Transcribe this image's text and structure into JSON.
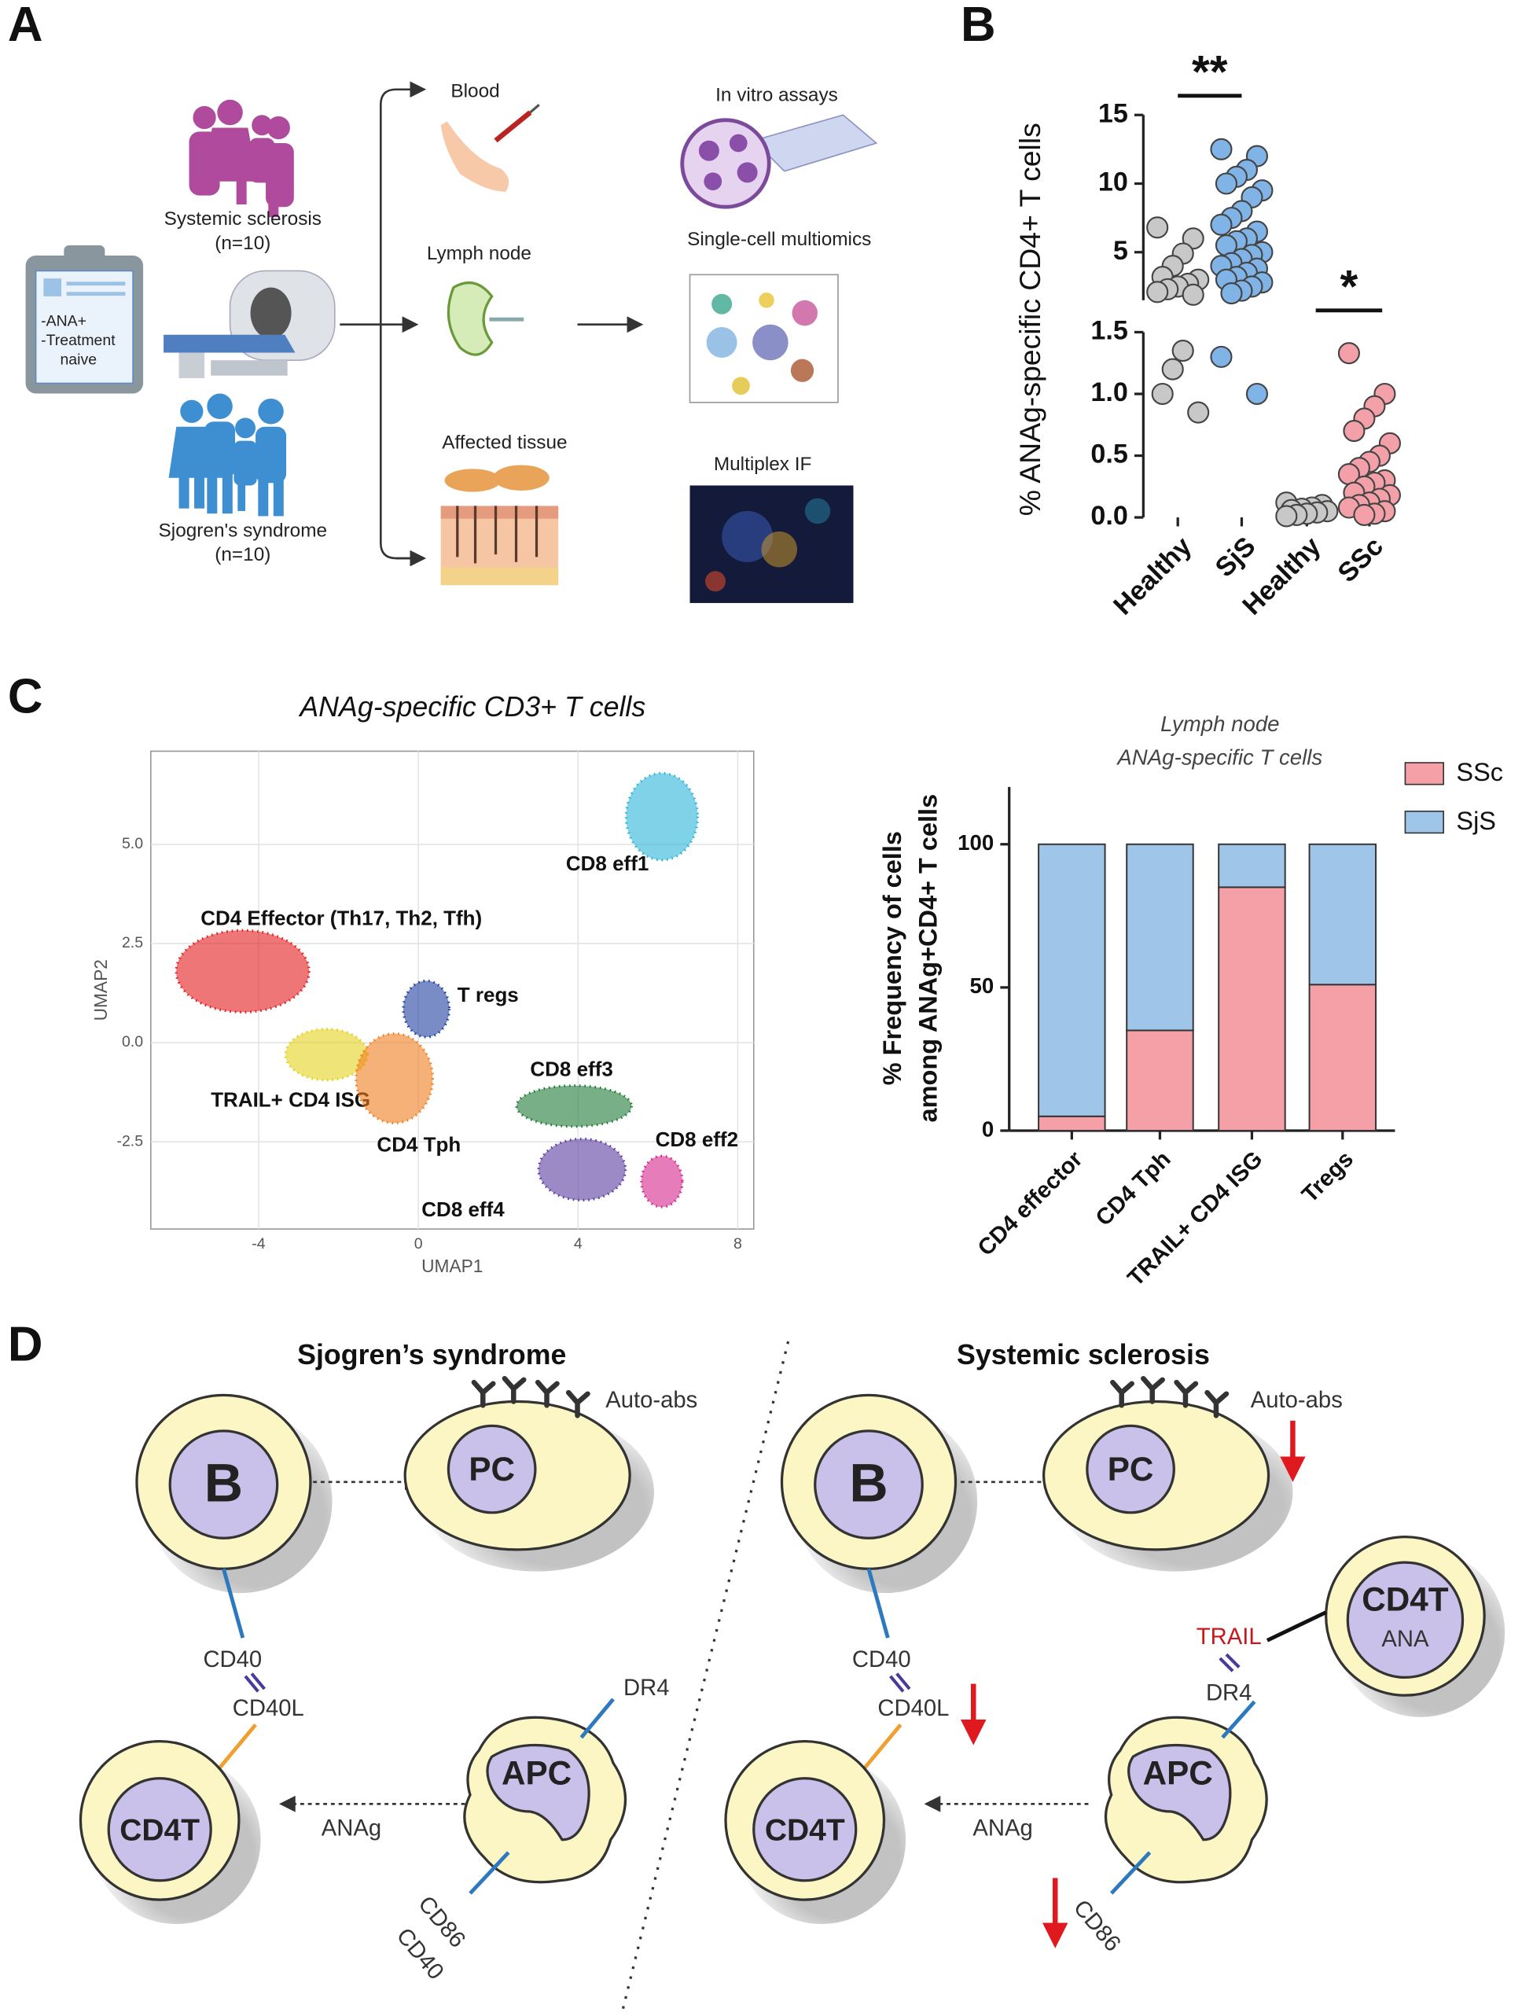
{
  "panel_labels": [
    "A",
    "B",
    "C",
    "D"
  ],
  "panel_a": {
    "cohorts": [
      {
        "name": "Systemic sclerosis",
        "n": "(n=10)"
      },
      {
        "name": "Sjogren's syndrome",
        "n": "(n=10)"
      }
    ],
    "criteria": [
      "-ANA+",
      "-Treatment",
      "naive"
    ],
    "samples": [
      "Blood",
      "Lymph node",
      "Affected tissue"
    ],
    "assays": [
      "In vitro assays",
      "Single-cell multiomics",
      "Multiplex IF"
    ]
  },
  "chart_data": [
    {
      "type": "strip",
      "ylabel": "% ANAg-specific CD4+ T cells",
      "categories": [
        "Healthy",
        "SjS",
        "Healthy",
        "SSc"
      ],
      "colors": [
        "#c8c8c8",
        "#80b3e6",
        "#c8c8c8",
        "#f3a0a8"
      ],
      "values": [
        [
          6.8,
          6.0,
          4.9,
          4.0,
          3.2,
          3.0,
          2.7,
          2.5,
          2.3,
          2.1,
          1.9,
          1.35,
          1.2,
          1.0,
          0.85
        ],
        [
          12.5,
          12.0,
          11.0,
          10.5,
          10.0,
          9.5,
          9.0,
          8.0,
          7.5,
          7.0,
          6.5,
          6.0,
          5.8,
          5.5,
          5.0,
          4.8,
          4.5,
          4.2,
          4.0,
          3.8,
          3.5,
          3.2,
          3.0,
          2.8,
          2.5,
          2.2,
          2.0,
          1.3,
          1.0
        ],
        [
          0.12,
          0.1,
          0.08,
          0.07,
          0.06,
          0.05,
          0.04,
          0.03,
          0.02,
          0.01
        ],
        [
          1.33,
          1.0,
          0.9,
          0.8,
          0.7,
          0.6,
          0.5,
          0.45,
          0.4,
          0.35,
          0.3,
          0.28,
          0.25,
          0.2,
          0.18,
          0.15,
          0.12,
          0.1,
          0.08,
          0.05,
          0.03,
          0.02
        ]
      ],
      "segments": [
        {
          "ylim": [
            0,
            1.5
          ],
          "yticks": [
            {
              "value": 0,
              "label": "0.0"
            },
            {
              "value": 0.5,
              "label": "0.5"
            },
            {
              "value": 1,
              "label": "1.0"
            },
            {
              "value": 1.5,
              "label": "1.5"
            }
          ]
        },
        {
          "ylim": [
            1.5,
            15
          ],
          "yticks": [
            5,
            10,
            15
          ]
        }
      ],
      "annotations": [
        "**",
        "*"
      ]
    },
    {
      "type": "cluster-map",
      "title": "ANAg-specific CD3+ T cells",
      "xlabel": "UMAP1",
      "ylabel": "UMAP2",
      "xlim": [
        -6.7,
        8.4
      ],
      "ylim": [
        -4.7,
        7.35
      ],
      "xticks": [
        -4,
        0,
        4,
        8
      ],
      "yticks": [
        -2.5,
        {
          "value": 0,
          "label": "0.0"
        },
        {
          "value": 2.5,
          "label": "2.5"
        },
        {
          "value": 5,
          "label": "5.0"
        }
      ],
      "grid": true,
      "clusters": [
        {
          "label": "CD8 eff1",
          "color": "#2bb4d8",
          "x": 6.1,
          "y": 5.7
        },
        {
          "label": "CD4 Effector (Th17, Th2, Tfh)",
          "color": "#e41a1c",
          "x": -4.4,
          "y": 1.8
        },
        {
          "label": "T regs",
          "color": "#1f3fa0",
          "x": 0.2,
          "y": 0.85
        },
        {
          "label": "TRAIL+ CD4 ISG",
          "color": "#e2d21c",
          "x": -2.3,
          "y": -0.3
        },
        {
          "label": "CD4 Tph",
          "color": "#f07d1e",
          "x": -0.6,
          "y": -0.9
        },
        {
          "label": "CD8 eff3",
          "color": "#1f7a35",
          "x": 3.9,
          "y": -1.6
        },
        {
          "label": "CD8 eff4",
          "color": "#5a3ca0",
          "x": 4.1,
          "y": -3.2
        },
        {
          "label": "CD8 eff2",
          "color": "#d6248a",
          "x": 6.1,
          "y": -3.5
        }
      ]
    },
    {
      "type": "stacked-bar",
      "title": "Lymph node",
      "subtitle": "ANAg-specific T cells",
      "ylabel": [
        "% Frequency of cells",
        "among ANAg+CD4+ T cells"
      ],
      "categories": [
        "CD4 effector",
        "CD4 Tph",
        "TRAIL+ CD4 ISG",
        "Tregs"
      ],
      "series": [
        {
          "name": "SSc",
          "color": "#f4a0a6",
          "values": [
            5,
            35,
            85,
            51
          ]
        },
        {
          "name": "SjS",
          "color": "#9fc5e8",
          "values": [
            95,
            65,
            15,
            49
          ]
        }
      ],
      "ylim": [
        0,
        120
      ],
      "yticks": [
        0,
        50,
        100
      ],
      "legend": "top-right"
    }
  ],
  "panel_d": {
    "left": {
      "title": "Sjogren’s syndrome",
      "labels": [
        "Auto-abs",
        "B",
        "PC",
        "CD40",
        "CD40L",
        "DR4",
        "APC",
        "CD4T",
        "ANAg",
        "CD86",
        "CD40"
      ]
    },
    "right": {
      "title": "Systemic sclerosis",
      "labels": [
        "Auto-abs",
        "B",
        "PC",
        "CD4T",
        "ANA",
        "TRAIL",
        "DR4",
        "CD40",
        "CD40L",
        "APC",
        "CD4T",
        "ANAg",
        "CD86"
      ]
    }
  }
}
